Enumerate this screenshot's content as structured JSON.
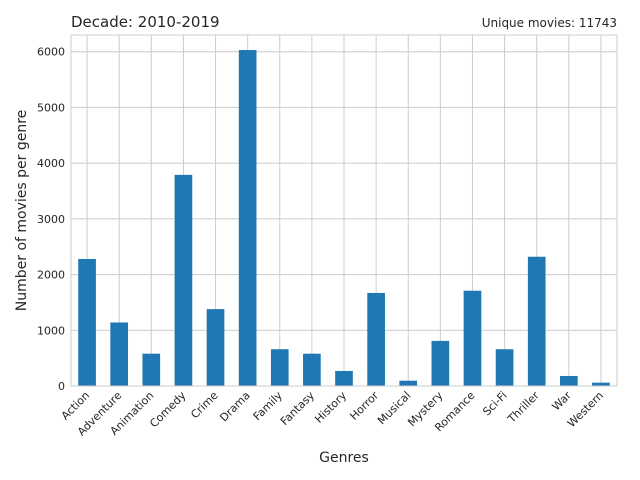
{
  "chart_data": {
    "type": "bar",
    "title": "Decade: 2010-2019",
    "annotation": "Unique movies: 11743",
    "xlabel": "Genres",
    "ylabel": "Number of movies per genre",
    "ylim": [
      0,
      6300
    ],
    "yticks": [
      0,
      1000,
      2000,
      3000,
      4000,
      5000,
      6000
    ],
    "grid": true,
    "legend": "none",
    "bar_color": "#1f77b4",
    "categories": [
      "Action",
      "Adventure",
      "Animation",
      "Comedy",
      "Crime",
      "Drama",
      "Family",
      "Fantasy",
      "History",
      "Horror",
      "Musical",
      "Mystery",
      "Romance",
      "Sci-Fi",
      "Thriller",
      "War",
      "Western"
    ],
    "values": [
      2280,
      1140,
      580,
      3790,
      1380,
      6030,
      660,
      580,
      270,
      1670,
      95,
      810,
      1710,
      660,
      2320,
      180,
      60
    ]
  }
}
